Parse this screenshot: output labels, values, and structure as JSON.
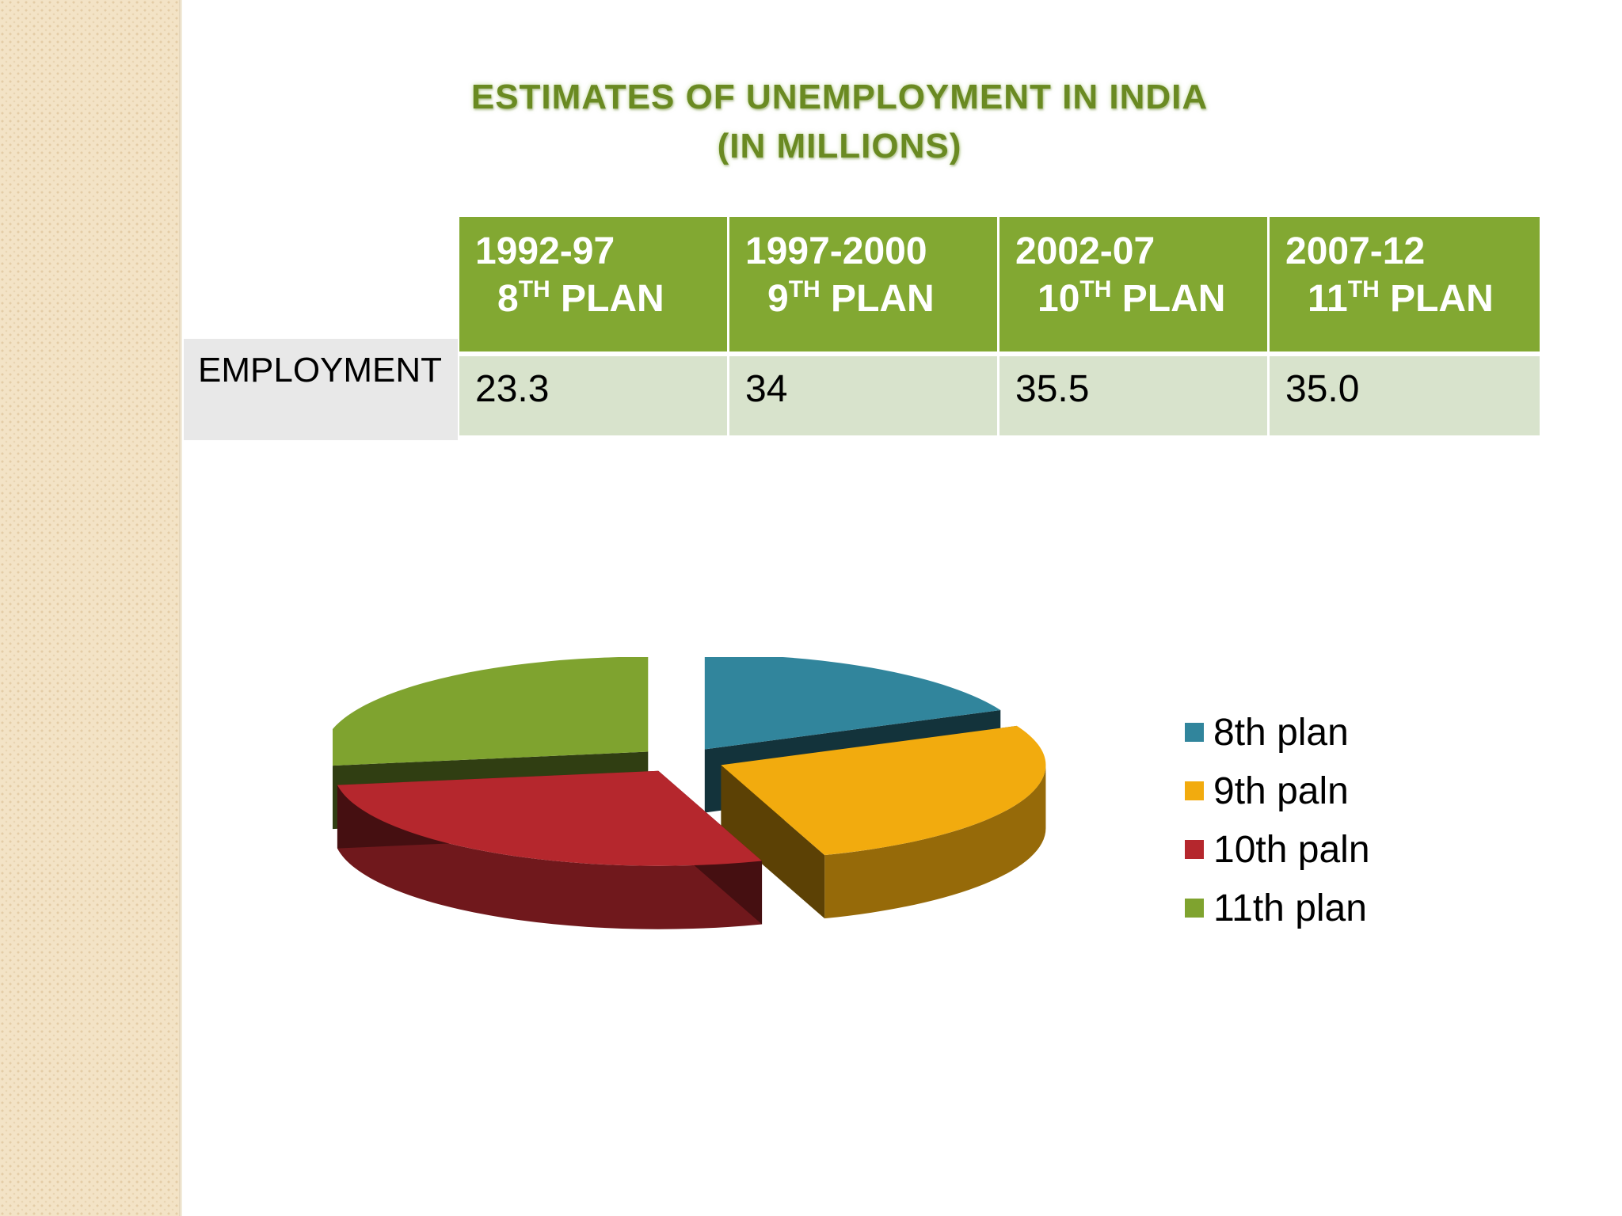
{
  "title": {
    "line1": "ESTIMATES OF UNEMPLOYMENT IN INDIA",
    "line2": "(IN MILLIONS)"
  },
  "table": {
    "row_label": "EMPLOYMENT",
    "columns": [
      {
        "period": "1992-97",
        "plan_num": "8",
        "plan_sup": "TH",
        "plan_word": "PLAN",
        "value": "23.3"
      },
      {
        "period": "1997-2000",
        "plan_num": "9",
        "plan_sup": "TH",
        "plan_word": "PLAN",
        "value": "34"
      },
      {
        "period": "2002-07",
        "plan_num": "10",
        "plan_sup": "TH",
        "plan_word": "PLAN",
        "value": "35.5"
      },
      {
        "period": "2007-12",
        "plan_num": "11",
        "plan_sup": "TH",
        "plan_word": "PLAN",
        "value": "35.0"
      }
    ]
  },
  "chart_data": {
    "type": "pie",
    "style": "3d-exploded",
    "categories": [
      "8th plan",
      "9th paln",
      "10th paln",
      "11th plan"
    ],
    "values": [
      23.3,
      34,
      35.5,
      35.0
    ],
    "colors": [
      "#31859c",
      "#f2ab0e",
      "#b5272d",
      "#7fa32f"
    ],
    "legend_position": "right"
  }
}
